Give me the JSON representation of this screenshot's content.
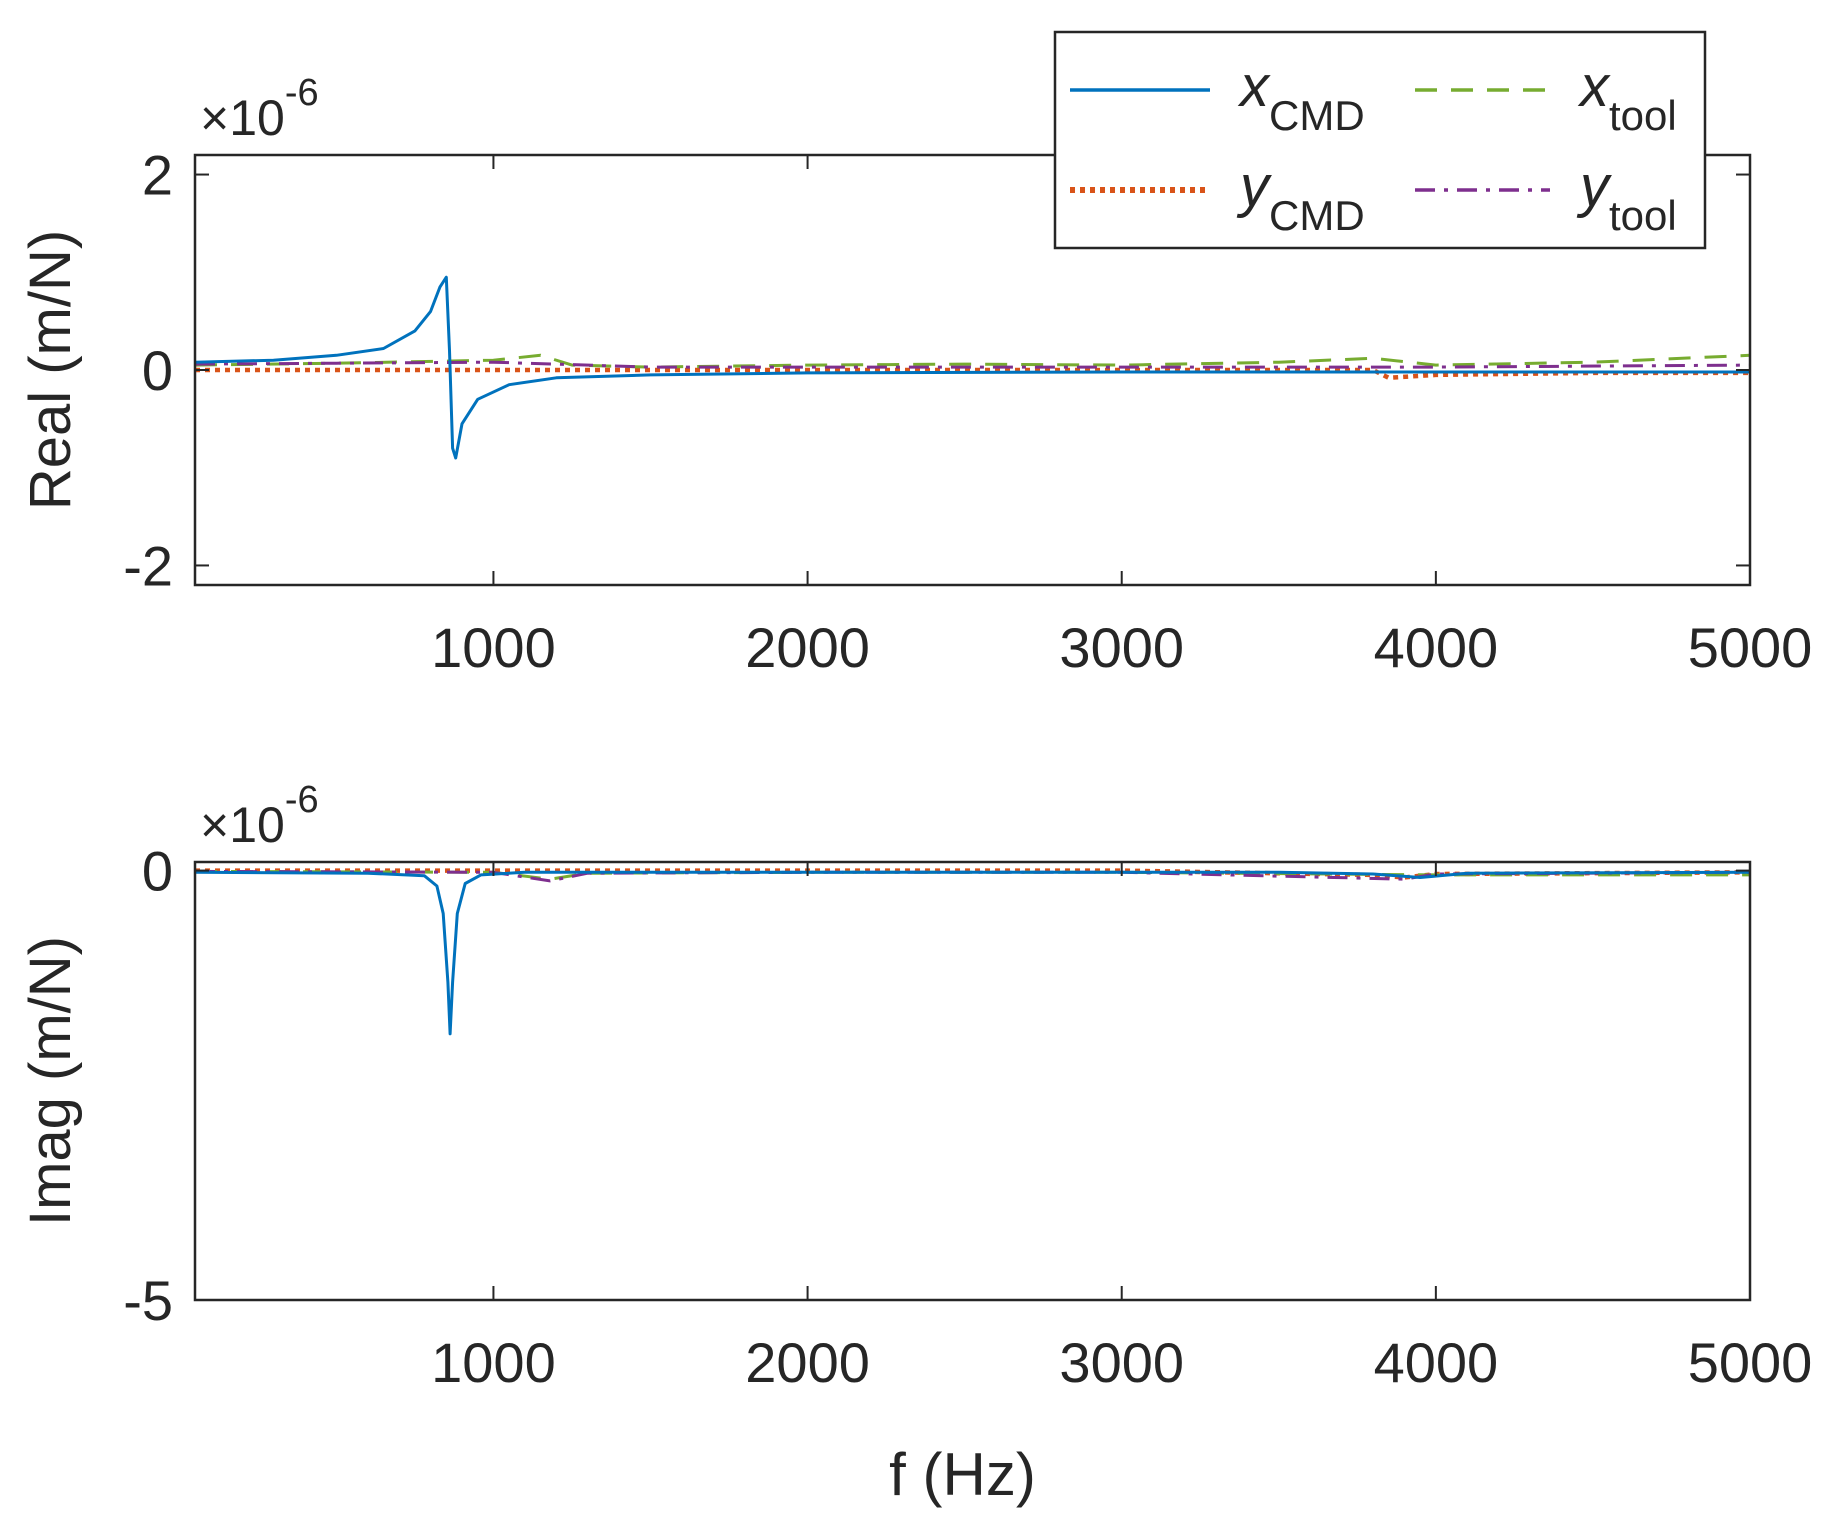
{
  "chart_data": [
    {
      "type": "line",
      "ylabel": "Real (m/N)",
      "xlabel": "",
      "multiplier": {
        "base": "×10",
        "exponent": "-6"
      },
      "xlim": [
        50,
        5000
      ],
      "ylim": [
        -2.2,
        2.2
      ],
      "xticks": [
        1000,
        2000,
        3000,
        4000,
        5000
      ],
      "xtick_labels": [
        "1000",
        "2000",
        "3000",
        "4000",
        "5000"
      ],
      "yticks": [
        2,
        0,
        -2
      ],
      "ytick_labels": [
        "2",
        "0",
        "-2"
      ],
      "series": [
        {
          "name": "x_CMD",
          "style": "solid",
          "color": "#0072BD",
          "x": [
            50,
            300,
            500,
            650,
            750,
            800,
            830,
            850,
            860,
            870,
            880,
            900,
            950,
            1050,
            1200,
            1500,
            2000,
            3000,
            4000,
            5000
          ],
          "y": [
            0.08,
            0.1,
            0.15,
            0.22,
            0.4,
            0.6,
            0.85,
            0.95,
            0.2,
            -0.8,
            -0.9,
            -0.55,
            -0.3,
            -0.15,
            -0.08,
            -0.05,
            -0.03,
            -0.02,
            -0.02,
            -0.02
          ]
        },
        {
          "name": "x_tool",
          "style": "dashed",
          "color": "#77AC30",
          "x": [
            50,
            500,
            1000,
            1150,
            1250,
            1500,
            2000,
            2500,
            3000,
            3500,
            3800,
            4000,
            4500,
            5000
          ],
          "y": [
            0.05,
            0.07,
            0.1,
            0.15,
            0.05,
            0.03,
            0.05,
            0.06,
            0.05,
            0.08,
            0.12,
            0.05,
            0.08,
            0.15
          ]
        },
        {
          "name": "y_CMD",
          "style": "dotted",
          "color": "#D95319",
          "x": [
            50,
            1000,
            2000,
            3000,
            3800,
            3850,
            4000,
            4500,
            5000
          ],
          "y": [
            0.0,
            0.0,
            0.0,
            0.0,
            0.0,
            -0.08,
            -0.05,
            -0.03,
            -0.03
          ]
        },
        {
          "name": "y_tool",
          "style": "dashdot",
          "color": "#7E2F8E",
          "x": [
            50,
            500,
            1000,
            1500,
            2000,
            3000,
            4000,
            5000
          ],
          "y": [
            0.06,
            0.07,
            0.08,
            0.03,
            0.03,
            0.03,
            0.03,
            0.05
          ]
        }
      ]
    },
    {
      "type": "line",
      "ylabel": "Imag (m/N)",
      "xlabel": "f (Hz)",
      "multiplier": {
        "base": "×10",
        "exponent": "-6"
      },
      "xlim": [
        50,
        5000
      ],
      "ylim": [
        -5,
        0.1
      ],
      "xticks": [
        1000,
        2000,
        3000,
        4000,
        5000
      ],
      "xtick_labels": [
        "1000",
        "2000",
        "3000",
        "4000",
        "5000"
      ],
      "yticks": [
        0,
        -5
      ],
      "ytick_labels": [
        "0",
        "-5"
      ],
      "series": [
        {
          "name": "x_CMD",
          "style": "solid",
          "color": "#0072BD",
          "x": [
            50,
            600,
            780,
            820,
            840,
            855,
            862,
            870,
            885,
            910,
            960,
            1100,
            2000,
            3500,
            3800,
            3950,
            4100,
            5000
          ],
          "y": [
            -0.02,
            -0.03,
            -0.06,
            -0.18,
            -0.5,
            -1.3,
            -1.9,
            -1.3,
            -0.5,
            -0.15,
            -0.05,
            -0.02,
            -0.02,
            -0.02,
            -0.04,
            -0.08,
            -0.03,
            -0.02
          ]
        },
        {
          "name": "x_tool",
          "style": "dashed",
          "color": "#77AC30",
          "x": [
            50,
            1000,
            1180,
            1300,
            2000,
            3000,
            4000,
            5000
          ],
          "y": [
            -0.01,
            -0.02,
            -0.1,
            -0.03,
            -0.02,
            -0.02,
            -0.05,
            -0.05
          ]
        },
        {
          "name": "y_CMD",
          "style": "dotted",
          "color": "#D95319",
          "x": [
            50,
            1000,
            2000,
            3000,
            3800,
            3900,
            4000,
            5000
          ],
          "y": [
            0.0,
            0.0,
            0.0,
            0.0,
            -0.05,
            -0.08,
            -0.04,
            -0.02
          ]
        },
        {
          "name": "y_tool",
          "style": "dashdot",
          "color": "#7E2F8E",
          "x": [
            50,
            1000,
            1180,
            1300,
            2000,
            3000,
            3900,
            4000,
            5000
          ],
          "y": [
            -0.01,
            -0.02,
            -0.12,
            -0.03,
            -0.02,
            -0.02,
            -0.1,
            -0.04,
            -0.02
          ]
        }
      ]
    }
  ],
  "legend": [
    {
      "var": "x",
      "sub": "CMD",
      "style": "solid",
      "color": "#0072BD"
    },
    {
      "var": "x",
      "sub": "tool",
      "style": "dashed",
      "color": "#77AC30"
    },
    {
      "var": "y",
      "sub": "CMD",
      "style": "dotted",
      "color": "#D95319"
    },
    {
      "var": "y",
      "sub": "tool",
      "style": "dashdot",
      "color": "#7E2F8E"
    }
  ]
}
